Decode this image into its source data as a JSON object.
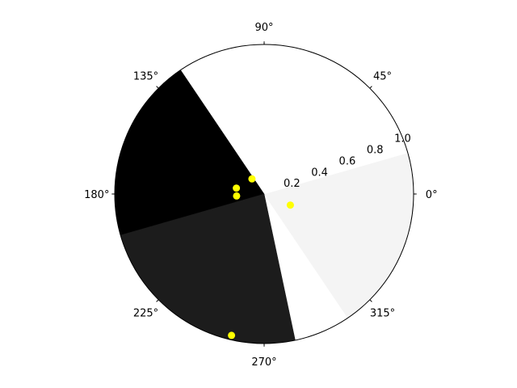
{
  "chart_data": {
    "type": "polar-region",
    "projection": "polar",
    "theta_unit": "degrees",
    "theta_ticks": [
      0,
      45,
      90,
      135,
      180,
      225,
      270,
      315
    ],
    "theta_tick_labels": [
      "0°",
      "45°",
      "90°",
      "135°",
      "180°",
      "225°",
      "270°",
      "315°"
    ],
    "r_ticks": [
      0.2,
      0.4,
      0.6,
      0.8,
      1.0
    ],
    "r_tick_labels": [
      "0.2",
      "0.4",
      "0.6",
      "0.8",
      "1.0"
    ],
    "r_label_angle": 22,
    "rlim": [
      0,
      1.0
    ],
    "grid": false,
    "regions": [
      {
        "color": "#f4f4f4",
        "theta_start": -56,
        "theta_end": 16
      },
      {
        "color": "#ffffff",
        "theta_start": 16,
        "theta_end": 124
      },
      {
        "color": "#000000",
        "theta_start": 124,
        "theta_end": 236
      },
      {
        "color": "#1c1c1c",
        "theta_start": 196,
        "theta_end": 282
      }
    ],
    "points": [
      {
        "theta": 129,
        "r": 0.13
      },
      {
        "theta": 168,
        "r": 0.19
      },
      {
        "theta": 184,
        "r": 0.185
      },
      {
        "theta": 337,
        "r": 0.19
      },
      {
        "theta": 257,
        "r": 0.97
      }
    ],
    "point_color": "#ffff00"
  }
}
